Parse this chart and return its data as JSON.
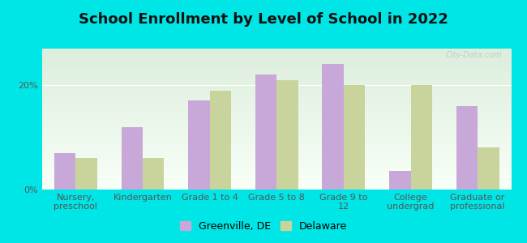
{
  "title": "School Enrollment by Level of School in 2022",
  "categories": [
    "Nursery,\npreschool",
    "Kindergarten",
    "Grade 1 to 4",
    "Grade 5 to 8",
    "Grade 9 to\n12",
    "College\nundergrad",
    "Graduate or\nprofessional"
  ],
  "greenville": [
    7.0,
    12.0,
    17.0,
    22.0,
    24.0,
    3.5,
    16.0
  ],
  "delaware": [
    6.0,
    6.0,
    19.0,
    21.0,
    20.0,
    20.0,
    8.0
  ],
  "greenville_color": "#c8a8d8",
  "delaware_color": "#c8d49c",
  "background_color": "#00e5e5",
  "plot_bg_top": "#ddeedd",
  "plot_bg_bottom": "#f8fff8",
  "legend_greenville": "Greenville, DE",
  "legend_delaware": "Delaware",
  "yticks": [
    0,
    20
  ],
  "ylim": [
    0,
    27
  ],
  "title_fontsize": 13,
  "tick_fontsize": 8,
  "legend_fontsize": 9,
  "watermark": "City-Data.com",
  "bar_width": 0.32
}
